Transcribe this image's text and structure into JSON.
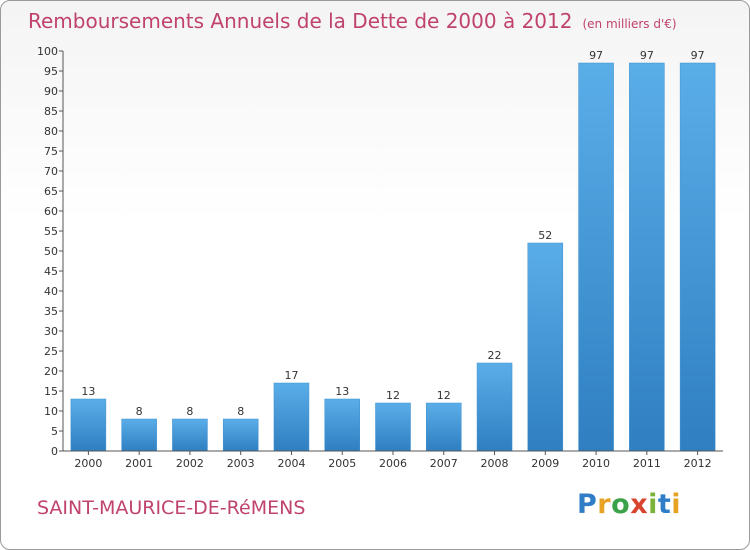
{
  "title": "Remboursements Annuels de la Dette de 2000 à 2012",
  "title_unit": "(en milliers d'€)",
  "commune": "SAINT-MAURICE-DE-RéMENS",
  "logo": {
    "text": "Proxiti",
    "letters": [
      "P",
      "r",
      "o",
      "x",
      "i",
      "t",
      "i"
    ]
  },
  "colors": {
    "title": "#c0426e",
    "bar_top": "#5aaee8",
    "bar_bottom": "#2f7fc1",
    "axis": "#555555"
  },
  "chart_data": {
    "type": "bar",
    "categories": [
      "2000",
      "2001",
      "2002",
      "2003",
      "2004",
      "2005",
      "2006",
      "2007",
      "2008",
      "2009",
      "2010",
      "2011",
      "2012"
    ],
    "values": [
      13,
      8,
      8,
      8,
      17,
      13,
      12,
      12,
      22,
      52,
      97,
      97,
      97
    ],
    "title": "Remboursements Annuels de la Dette de 2000 à 2012",
    "xlabel": "",
    "ylabel": "",
    "ylim": [
      0,
      100
    ],
    "ytick_step": 5,
    "grid": false,
    "data_labels": true
  }
}
